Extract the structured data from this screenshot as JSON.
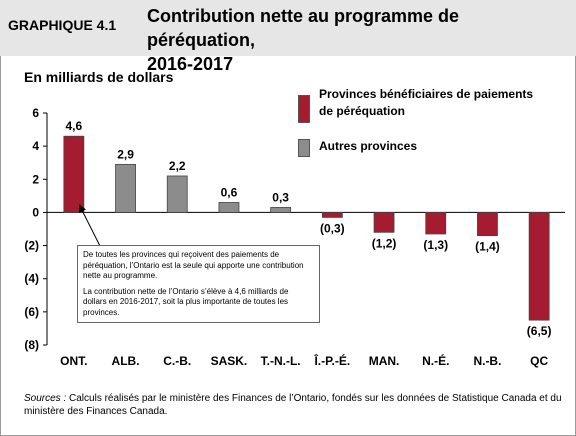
{
  "header": {
    "graph_label": "GRAPHIQUE 4.1",
    "title_line1": "Contribution nette au programme de péréquation,",
    "title_line2": "2016-2017"
  },
  "unit_label": "En milliards de dollars",
  "legend": [
    {
      "label_line1": "Provinces bénéficiaires de paiements",
      "label_line2": "de péréquation",
      "color": "#a51c30"
    },
    {
      "label_line1": "Autres provinces",
      "label_line2": "",
      "color": "#8c8c8c"
    }
  ],
  "callout": {
    "paragraph1": "De toutes les provinces qui reçoivent des paiements de péréquation, l’Ontario est la seule qui apporte une contribution nette au programme.",
    "paragraph2": "La contribution nette de l’Ontario s’élève à 4,6 milliards de dollars en 2016-2017, soit la plus importante de toutes les provinces."
  },
  "sources": {
    "prefix": "Sources :",
    "text": " Calculs réalisés par le ministère des Finances de l’Ontario, fondés sur les données de Statistique Canada et du ministère des Finances Canada."
  },
  "chart_data": {
    "type": "bar",
    "categories": [
      "ONT.",
      "ALB.",
      "C.-B.",
      "SASK.",
      "T.-N.-L.",
      "Î.-P.-É.",
      "MAN.",
      "N.-É.",
      "N.-B.",
      "QC"
    ],
    "values": [
      4.6,
      2.9,
      2.2,
      0.6,
      0.3,
      -0.3,
      -1.2,
      -1.3,
      -1.4,
      -6.5
    ],
    "value_labels": [
      "4,6",
      "2,9",
      "2,2",
      "0,6",
      "0,3",
      "(0,3)",
      "(1,2)",
      "(1,3)",
      "(1,4)",
      "(6,5)"
    ],
    "bar_group": [
      "recipient",
      "other",
      "other",
      "other",
      "other",
      "recipient",
      "recipient",
      "recipient",
      "recipient",
      "recipient"
    ],
    "colors": {
      "recipient": "#a51c30",
      "other": "#8c8c8c"
    },
    "ylim": [
      -8,
      6
    ],
    "yticks": [
      6,
      4,
      2,
      0,
      -2,
      -4,
      -6,
      -8
    ],
    "ytick_labels": [
      "6",
      "4",
      "2",
      "0",
      "(2)",
      "(4)",
      "(6)",
      "(8)"
    ],
    "xlabel": "",
    "ylabel": "En milliards de dollars",
    "grid": false,
    "legend_position": "top-right"
  }
}
